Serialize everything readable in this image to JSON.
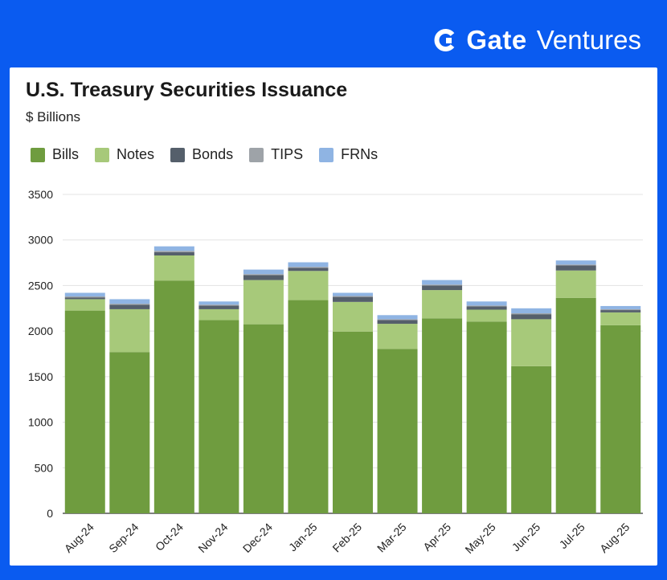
{
  "brand": {
    "name": "Gate",
    "suffix": "Ventures"
  },
  "chart_data": {
    "type": "bar",
    "stacked": true,
    "title": "U.S. Treasury Securities Issuance",
    "subtitle": "$ Billions",
    "categories": [
      "Aug-24",
      "Sep-24",
      "Oct-24",
      "Nov-24",
      "Dec-24",
      "Jan-25",
      "Feb-25",
      "Mar-25",
      "Apr-25",
      "May-25",
      "Jun-25",
      "Jul-25",
      "Aug-25"
    ],
    "ylim": [
      0,
      3500
    ],
    "yticks": [
      0,
      500,
      1000,
      1500,
      2000,
      2500,
      3000,
      3500
    ],
    "grid": true,
    "legend_position": "top",
    "series": [
      {
        "name": "Bills",
        "color": "#6f9c3f",
        "values": [
          2225,
          1770,
          2555,
          2120,
          2075,
          2340,
          1995,
          1805,
          2140,
          2105,
          1615,
          2365,
          2065
        ]
      },
      {
        "name": "Notes",
        "color": "#a7c97a",
        "values": [
          125,
          470,
          275,
          120,
          485,
          320,
          325,
          275,
          310,
          130,
          515,
          300,
          140
        ]
      },
      {
        "name": "Bonds",
        "color": "#555f6b",
        "values": [
          20,
          50,
          35,
          40,
          55,
          35,
          55,
          40,
          50,
          35,
          55,
          55,
          25
        ]
      },
      {
        "name": "TIPS",
        "color": "#9ea3a8",
        "values": [
          10,
          10,
          15,
          10,
          10,
          10,
          10,
          10,
          10,
          10,
          10,
          10,
          10
        ]
      },
      {
        "name": "FRNs",
        "color": "#8fb4e3",
        "values": [
          40,
          50,
          50,
          35,
          50,
          50,
          35,
          45,
          50,
          45,
          55,
          45,
          35
        ]
      }
    ]
  }
}
